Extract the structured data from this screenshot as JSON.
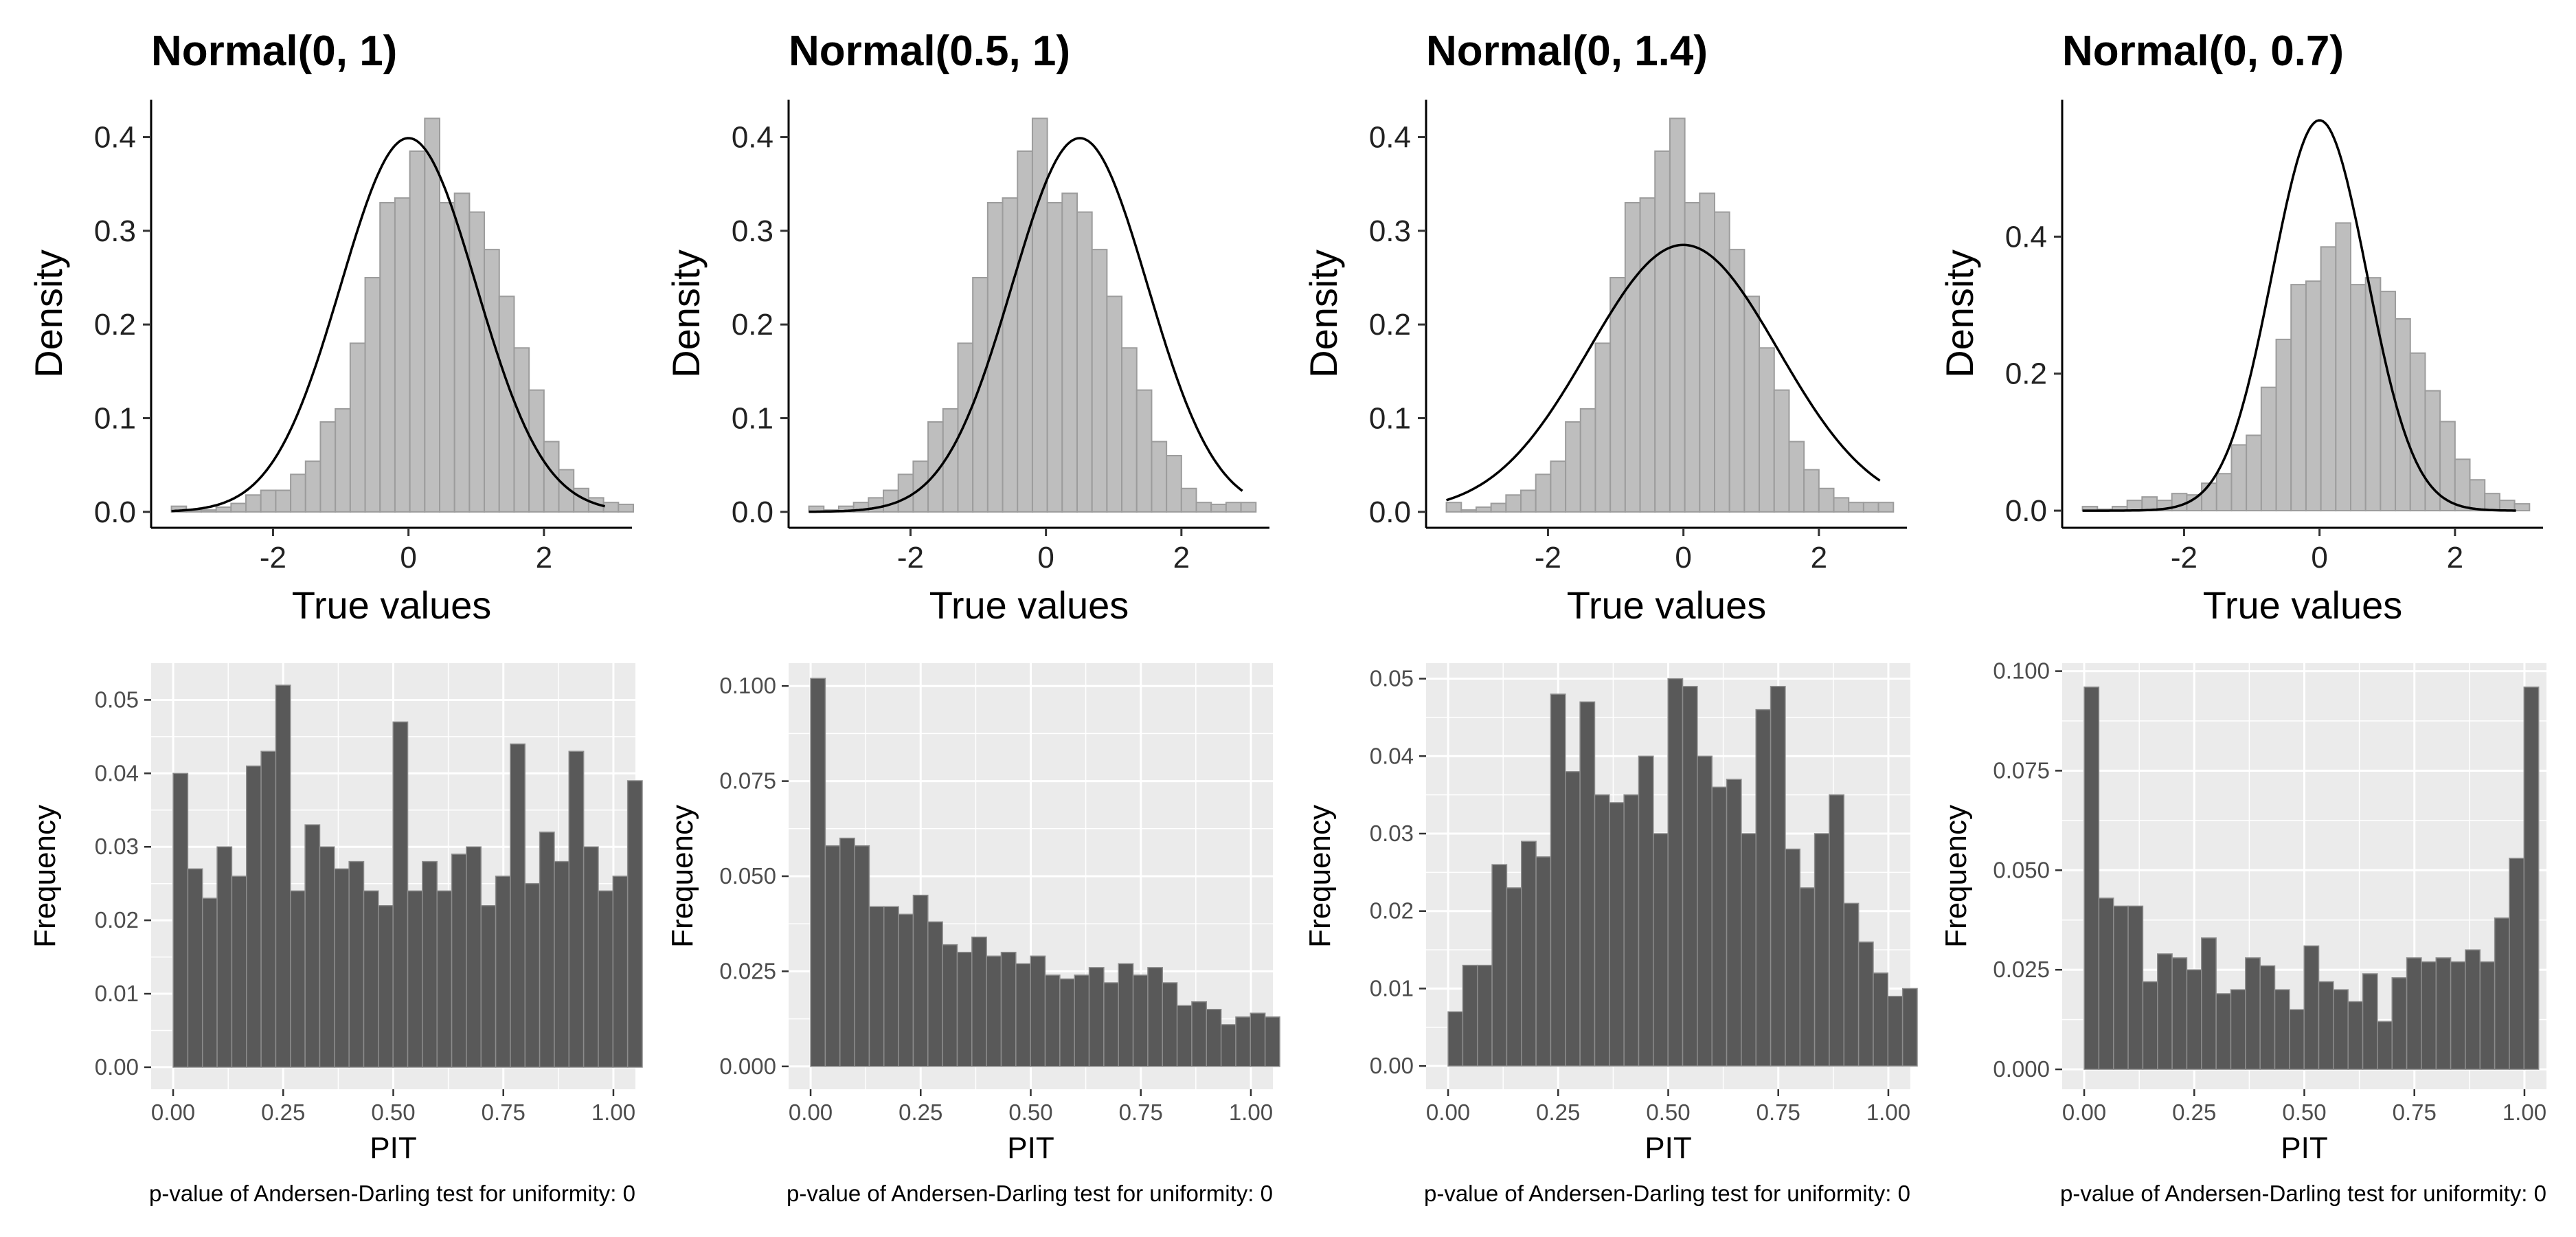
{
  "figure": {
    "normal_curve_color": "#000000",
    "top_hist_fill": "#bebebe",
    "top_hist_stroke": "#9c9c9c",
    "bottom_hist_fill": "#595959",
    "bottom_hist_stroke": "#8c8c8c",
    "bottom_panel_bg": "#ebebeb",
    "grid_color": "#ffffff"
  },
  "chart_data": [
    {
      "type": "bar",
      "title": "Normal(0, 1)",
      "xlabel": "True values",
      "ylabel": "Density",
      "xlim": [
        -3.8,
        3.3
      ],
      "ylim": [
        -0.017,
        0.44
      ],
      "x_ticks": [
        -2,
        0,
        2
      ],
      "x_tick_labels": [
        "-2",
        "0",
        "2"
      ],
      "y_ticks": [
        0.0,
        0.1,
        0.2,
        0.3,
        0.4
      ],
      "y_tick_labels": [
        "0.0",
        "0.1",
        "0.2",
        "0.3",
        "0.4"
      ],
      "bin_start": -3.5,
      "bin_width": 0.22,
      "values": [
        0.006,
        0.002,
        0.002,
        0.005,
        0.009,
        0.018,
        0.023,
        0.023,
        0.04,
        0.054,
        0.096,
        0.11,
        0.18,
        0.25,
        0.33,
        0.335,
        0.385,
        0.42,
        0.33,
        0.34,
        0.32,
        0.28,
        0.23,
        0.175,
        0.13,
        0.075,
        0.045,
        0.025,
        0.015,
        0.01,
        0.008
      ],
      "curve": {
        "mean": 0,
        "sd": 1,
        "from": -3.5,
        "to": 2.9
      },
      "grid": false
    },
    {
      "type": "bar",
      "title": "Normal(0.5, 1)",
      "xlabel": "True values",
      "ylabel": "Density",
      "xlim": [
        -3.8,
        3.3
      ],
      "ylim": [
        -0.017,
        0.44
      ],
      "x_ticks": [
        -2,
        0,
        2
      ],
      "x_tick_labels": [
        "-2",
        "0",
        "2"
      ],
      "y_ticks": [
        0.0,
        0.1,
        0.2,
        0.3,
        0.4
      ],
      "y_tick_labels": [
        "0.0",
        "0.1",
        "0.2",
        "0.3",
        "0.4"
      ],
      "bin_start": -3.5,
      "bin_width": 0.22,
      "values": [
        0.006,
        0.002,
        0.006,
        0.01,
        0.015,
        0.023,
        0.04,
        0.054,
        0.096,
        0.11,
        0.18,
        0.25,
        0.33,
        0.335,
        0.385,
        0.42,
        0.33,
        0.34,
        0.32,
        0.28,
        0.23,
        0.175,
        0.13,
        0.075,
        0.06,
        0.025,
        0.01,
        0.008,
        0.01,
        0.01
      ],
      "curve": {
        "mean": 0.5,
        "sd": 1,
        "from": -3.5,
        "to": 2.9
      },
      "grid": false
    },
    {
      "type": "bar",
      "title": "Normal(0, 1.4)",
      "xlabel": "True values",
      "ylabel": "Density",
      "xlim": [
        -3.8,
        3.3
      ],
      "ylim": [
        -0.017,
        0.44
      ],
      "x_ticks": [
        -2,
        0,
        2
      ],
      "x_tick_labels": [
        "-2",
        "0",
        "2"
      ],
      "y_ticks": [
        0.0,
        0.1,
        0.2,
        0.3,
        0.4
      ],
      "y_tick_labels": [
        "0.0",
        "0.1",
        "0.2",
        "0.3",
        "0.4"
      ],
      "bin_start": -3.5,
      "bin_width": 0.22,
      "values": [
        0.01,
        0.002,
        0.005,
        0.009,
        0.018,
        0.023,
        0.04,
        0.054,
        0.096,
        0.11,
        0.18,
        0.25,
        0.33,
        0.335,
        0.385,
        0.42,
        0.33,
        0.34,
        0.32,
        0.28,
        0.23,
        0.175,
        0.13,
        0.075,
        0.045,
        0.025,
        0.015,
        0.01,
        0.01,
        0.01
      ],
      "curve": {
        "mean": 0,
        "sd": 1.4,
        "from": -3.5,
        "to": 2.9
      },
      "grid": false
    },
    {
      "type": "bar",
      "title": "Normal(0, 0.7)",
      "xlabel": "True values",
      "ylabel": "Density",
      "xlim": [
        -3.8,
        3.3
      ],
      "ylim": [
        -0.025,
        0.6
      ],
      "x_ticks": [
        -2,
        0,
        2
      ],
      "x_tick_labels": [
        "-2",
        "0",
        "2"
      ],
      "y_ticks": [
        0.0,
        0.2,
        0.4
      ],
      "y_tick_labels": [
        "0.0",
        "0.2",
        "0.4"
      ],
      "bin_start": -3.5,
      "bin_width": 0.22,
      "values": [
        0.006,
        0.002,
        0.006,
        0.015,
        0.02,
        0.015,
        0.025,
        0.023,
        0.04,
        0.054,
        0.096,
        0.11,
        0.18,
        0.25,
        0.33,
        0.335,
        0.385,
        0.42,
        0.33,
        0.34,
        0.32,
        0.28,
        0.23,
        0.175,
        0.13,
        0.075,
        0.045,
        0.025,
        0.015,
        0.01
      ],
      "curve": {
        "mean": 0,
        "sd": 0.7,
        "from": -3.5,
        "to": 2.9
      },
      "grid": false
    },
    {
      "type": "bar",
      "xlabel": "PIT",
      "ylabel": "Frequency",
      "caption": "p-value of Andersen-Darling test for uniformity: 0",
      "xlim": [
        -0.05,
        1.05
      ],
      "ylim": [
        -0.003,
        0.055
      ],
      "x_ticks": [
        0,
        0.25,
        0.5,
        0.75,
        1
      ],
      "x_tick_labels": [
        "0.00",
        "0.25",
        "0.50",
        "0.75",
        "1.00"
      ],
      "y_ticks": [
        0,
        0.01,
        0.02,
        0.03,
        0.04,
        0.05
      ],
      "y_tick_labels": [
        "0.00",
        "0.01",
        "0.02",
        "0.03",
        "0.04",
        "0.05"
      ],
      "bin_start": 0,
      "bin_width": 0.0333,
      "values": [
        0.04,
        0.027,
        0.023,
        0.03,
        0.026,
        0.041,
        0.043,
        0.052,
        0.024,
        0.033,
        0.03,
        0.027,
        0.028,
        0.024,
        0.022,
        0.047,
        0.024,
        0.028,
        0.024,
        0.029,
        0.03,
        0.022,
        0.026,
        0.044,
        0.025,
        0.032,
        0.028,
        0.043,
        0.03,
        0.024,
        0.026,
        0.039
      ],
      "grid": true
    },
    {
      "type": "bar",
      "xlabel": "PIT",
      "ylabel": "Frequency",
      "caption": "p-value of Andersen-Darling test for uniformity: 0",
      "xlim": [
        -0.05,
        1.05
      ],
      "ylim": [
        -0.006,
        0.106
      ],
      "x_ticks": [
        0,
        0.25,
        0.5,
        0.75,
        1
      ],
      "x_tick_labels": [
        "0.00",
        "0.25",
        "0.50",
        "0.75",
        "1.00"
      ],
      "y_ticks": [
        0,
        0.025,
        0.05,
        0.075,
        0.1
      ],
      "y_tick_labels": [
        "0.000",
        "0.025",
        "0.050",
        "0.075",
        "0.100"
      ],
      "bin_start": 0,
      "bin_width": 0.0333,
      "values": [
        0.102,
        0.058,
        0.06,
        0.058,
        0.042,
        0.042,
        0.04,
        0.045,
        0.038,
        0.032,
        0.03,
        0.034,
        0.029,
        0.03,
        0.027,
        0.029,
        0.024,
        0.023,
        0.024,
        0.026,
        0.022,
        0.027,
        0.024,
        0.026,
        0.022,
        0.016,
        0.017,
        0.015,
        0.011,
        0.013,
        0.014,
        0.013
      ],
      "grid": true
    },
    {
      "type": "bar",
      "xlabel": "PIT",
      "ylabel": "Frequency",
      "caption": "p-value of Andersen-Darling test for uniformity: 0",
      "xlim": [
        -0.05,
        1.05
      ],
      "ylim": [
        -0.003,
        0.052
      ],
      "x_ticks": [
        0,
        0.25,
        0.5,
        0.75,
        1
      ],
      "x_tick_labels": [
        "0.00",
        "0.25",
        "0.50",
        "0.75",
        "1.00"
      ],
      "y_ticks": [
        0,
        0.01,
        0.02,
        0.03,
        0.04,
        0.05
      ],
      "y_tick_labels": [
        "0.00",
        "0.01",
        "0.02",
        "0.03",
        "0.04",
        "0.05"
      ],
      "bin_start": 0,
      "bin_width": 0.0333,
      "values": [
        0.007,
        0.013,
        0.013,
        0.026,
        0.023,
        0.029,
        0.027,
        0.048,
        0.038,
        0.047,
        0.035,
        0.034,
        0.035,
        0.04,
        0.03,
        0.05,
        0.049,
        0.04,
        0.036,
        0.037,
        0.03,
        0.046,
        0.049,
        0.028,
        0.023,
        0.03,
        0.035,
        0.021,
        0.016,
        0.012,
        0.009,
        0.01
      ],
      "grid": true
    },
    {
      "type": "bar",
      "xlabel": "PIT",
      "ylabel": "Frequency",
      "caption": "p-value of Andersen-Darling test for uniformity: 0",
      "xlim": [
        -0.05,
        1.05
      ],
      "ylim": [
        -0.005,
        0.102
      ],
      "x_ticks": [
        0,
        0.25,
        0.5,
        0.75,
        1
      ],
      "x_tick_labels": [
        "0.00",
        "0.25",
        "0.50",
        "0.75",
        "1.00"
      ],
      "y_ticks": [
        0,
        0.025,
        0.05,
        0.075,
        0.1
      ],
      "y_tick_labels": [
        "0.000",
        "0.025",
        "0.050",
        "0.075",
        "0.100"
      ],
      "bin_start": 0,
      "bin_width": 0.0333,
      "values": [
        0.096,
        0.043,
        0.041,
        0.041,
        0.022,
        0.029,
        0.028,
        0.025,
        0.033,
        0.019,
        0.02,
        0.028,
        0.026,
        0.02,
        0.015,
        0.031,
        0.022,
        0.02,
        0.017,
        0.024,
        0.012,
        0.023,
        0.028,
        0.027,
        0.028,
        0.027,
        0.03,
        0.027,
        0.038,
        0.053,
        0.096
      ],
      "grid": true
    }
  ]
}
